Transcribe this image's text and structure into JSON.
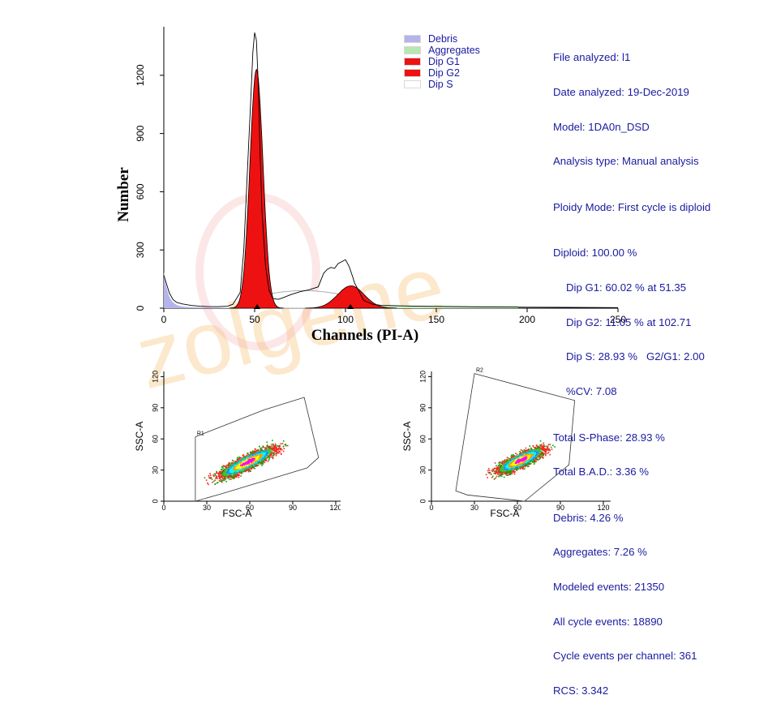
{
  "chart_data": [
    {
      "type": "histogram",
      "xlabel": "Channels (PI-A)",
      "ylabel": "Number",
      "xlim": [
        0,
        250
      ],
      "ylim": [
        0,
        1450
      ],
      "x_ticks": [
        0,
        50,
        100,
        150,
        200,
        250
      ],
      "y_ticks": [
        0,
        300,
        600,
        900,
        1200
      ],
      "peak_markers": [
        51.35,
        102.71
      ],
      "legend": [
        {
          "name": "Debris",
          "color": "#b4b4ea"
        },
        {
          "name": "Aggregates",
          "color": "#b6e8b0"
        },
        {
          "name": "Dip G1",
          "color": "#ee1111"
        },
        {
          "name": "Dip G2",
          "color": "#ee1111"
        },
        {
          "name": "Dip S",
          "color": "#ffffff"
        }
      ],
      "series": [
        {
          "name": "Dip G1",
          "peak_channel": 51,
          "peak_height": 1230,
          "sd": 3.6
        },
        {
          "name": "Dip G2",
          "peak_channel": 103,
          "peak_height": 115,
          "sd": 7.3
        },
        {
          "name": "Dip S",
          "level": 90,
          "from": 51,
          "to": 103
        },
        {
          "name": "Debris",
          "peak_height": 180,
          "decay": 2.5
        },
        {
          "name": "Aggregates",
          "level": 12,
          "from": 110,
          "to": 195
        }
      ],
      "raw_histogram": {
        "x": [
          0,
          1,
          3,
          5,
          7,
          10,
          15,
          20,
          25,
          30,
          35,
          38,
          42,
          44,
          46,
          48,
          49,
          50,
          51,
          52,
          53,
          54,
          56,
          58,
          60,
          63,
          66,
          70,
          75,
          80,
          85,
          88,
          90,
          92,
          94,
          96,
          98,
          100,
          102,
          104,
          105,
          107,
          110,
          115,
          120,
          130,
          140,
          160,
          180,
          200,
          220,
          250
        ],
        "y": [
          170,
          140,
          80,
          45,
          30,
          22,
          14,
          10,
          8,
          8,
          10,
          20,
          80,
          300,
          700,
          1100,
          1320,
          1420,
          1380,
          1150,
          800,
          500,
          220,
          90,
          50,
          45,
          55,
          70,
          85,
          95,
          110,
          180,
          200,
          210,
          205,
          230,
          240,
          250,
          215,
          160,
          130,
          95,
          40,
          20,
          14,
          12,
          10,
          8,
          6,
          5,
          4,
          3
        ]
      }
    },
    {
      "type": "scatter",
      "name": "left",
      "xlabel": "FSC-A",
      "ylabel": "SSC-A",
      "xlim": [
        0,
        125
      ],
      "ylim": [
        0,
        125
      ],
      "x_ticks": [
        0,
        30,
        60,
        90,
        120
      ],
      "y_ticks": [
        0,
        30,
        60,
        90,
        120
      ],
      "gate_label": "R1",
      "gate_polygon": [
        [
          22,
          62
        ],
        [
          22,
          0
        ],
        [
          40,
          7
        ],
        [
          100,
          32
        ],
        [
          108,
          42
        ],
        [
          98,
          100
        ],
        [
          70,
          88
        ]
      ],
      "population": {
        "center": [
          58,
          38
        ],
        "slope": 0.72,
        "spread_major": 24,
        "spread_minor": 6,
        "points": 2400
      }
    },
    {
      "type": "scatter",
      "name": "right",
      "xlabel": "FSC-A",
      "ylabel": "SSC-A",
      "xlim": [
        0,
        125
      ],
      "ylim": [
        0,
        125
      ],
      "x_ticks": [
        0,
        30,
        60,
        90,
        120
      ],
      "y_ticks": [
        0,
        30,
        60,
        90,
        120
      ],
      "gate_label": "R2",
      "gate_polygon": [
        [
          30,
          123
        ],
        [
          100,
          97
        ],
        [
          96,
          35
        ],
        [
          65,
          0
        ],
        [
          25,
          6
        ],
        [
          17,
          10
        ]
      ],
      "population": {
        "center": [
          62,
          40
        ],
        "slope": 0.72,
        "spread_major": 20,
        "spread_minor": 6,
        "points": 2000
      }
    }
  ],
  "panel": {
    "file": "File analyzed: l1",
    "date": "Date analyzed: 19-Dec-2019",
    "model": "Model: 1DA0n_DSD",
    "atype": "Analysis type: Manual analysis",
    "ploidy": "Ploidy Mode: First cycle is diploid",
    "diploid": "Diploid: 100.00 %",
    "g1": "Dip G1: 60.02 % at 51.35",
    "g2": "Dip G2: 11.05 % at 102.71",
    "s": "Dip S: 28.93 %   G2/G1: 2.00",
    "cv": "%CV: 7.08",
    "totals": "Total S-Phase: 28.93 %",
    "bad": "Total B.A.D.: 3.36 %",
    "debris": "Debris: 4.26 %",
    "agg": "Aggregates: 7.26 %",
    "modeled": "Modeled events: 21350",
    "allcycle": "All cycle events: 18890",
    "perchan": "Cycle events per channel: 361",
    "rcs": "RCS: 3.342"
  },
  "watermark": "zolgene"
}
